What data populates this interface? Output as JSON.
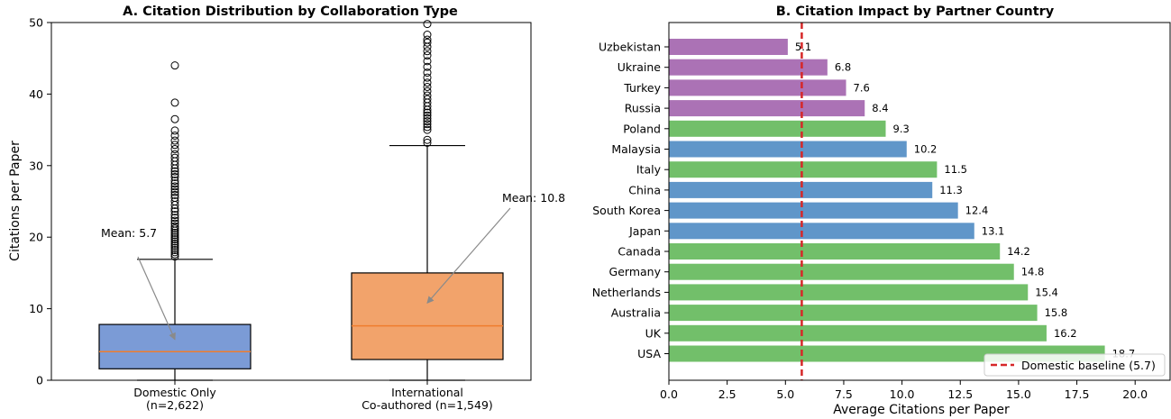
{
  "colors": {
    "domestic_box": "#7b9bd6",
    "international_box": "#f2a36b",
    "median_line": "#ef7d2d",
    "europe_green": "#72bf6a",
    "asia_blue": "#6096c9",
    "eurasia_purple": "#ab72b5",
    "baseline_red": "#d62728",
    "annotation_arrow": "#8a8a8a"
  },
  "chart_data": [
    {
      "type": "box",
      "title": "A. Citation Distribution by Collaboration Type",
      "xlabel": "",
      "ylabel": "Citations per Paper",
      "ylim": [
        0,
        50
      ],
      "yticks": [
        "0",
        "10",
        "20",
        "30",
        "40",
        "50"
      ],
      "categories": [
        {
          "line1": "Domestic Only",
          "line2": "(n=2,622)"
        },
        {
          "line1": "International",
          "line2": "Co-authored (n=1,549)"
        }
      ],
      "boxes": [
        {
          "name": "Domestic Only",
          "q1": 1.6,
          "median": 4.0,
          "q3": 7.8,
          "whisker_low": 0.0,
          "whisker_high": 16.9,
          "mean_label": "Mean: 5.7",
          "mean": 5.7,
          "outliers": [
            17.3,
            17.6,
            17.9,
            18.2,
            18.5,
            18.8,
            19.1,
            19.4,
            19.7,
            20.0,
            20.3,
            20.6,
            20.9,
            21.2,
            21.5,
            21.9,
            22.3,
            22.7,
            23.1,
            23.6,
            24.0,
            24.5,
            25.0,
            25.5,
            25.9,
            26.3,
            26.7,
            27.1,
            27.5,
            27.9,
            28.4,
            28.8,
            29.2,
            29.6,
            30.1,
            30.6,
            31.1,
            31.6,
            32.3,
            32.9,
            33.5,
            34.2,
            34.9,
            36.5,
            38.8,
            44.0
          ]
        },
        {
          "name": "International Co-authored",
          "q1": 2.9,
          "median": 7.6,
          "q3": 15.0,
          "whisker_low": 0.0,
          "whisker_high": 32.8,
          "mean_label": "Mean: 10.8",
          "mean": 10.8,
          "outliers": [
            33.2,
            33.6,
            35.0,
            35.4,
            35.8,
            36.2,
            36.6,
            37.0,
            37.4,
            37.8,
            38.3,
            38.8,
            39.3,
            39.8,
            40.4,
            41.0,
            41.6,
            42.3,
            43.0,
            43.8,
            44.6,
            45.4,
            46.0,
            46.6,
            47.2,
            47.6,
            48.3,
            49.8
          ]
        }
      ]
    },
    {
      "type": "bar",
      "orientation": "horizontal",
      "title": "B. Citation Impact by Partner Country",
      "xlabel": "Average Citations per Paper",
      "ylabel": "",
      "xlim": [
        0,
        21.5
      ],
      "xticks": [
        "0.0",
        "2.5",
        "5.0",
        "7.5",
        "10.0",
        "12.5",
        "15.0",
        "17.5",
        "20.0"
      ],
      "categories": [
        "Uzbekistan",
        "Ukraine",
        "Turkey",
        "Russia",
        "Poland",
        "Malaysia",
        "Italy",
        "China",
        "South Korea",
        "Japan",
        "Canada",
        "Germany",
        "Netherlands",
        "Australia",
        "UK",
        "USA"
      ],
      "values": [
        5.1,
        6.8,
        7.6,
        8.4,
        9.3,
        10.2,
        11.5,
        11.3,
        12.4,
        13.1,
        14.2,
        14.8,
        15.4,
        15.8,
        16.2,
        18.7
      ],
      "value_labels": [
        "5.1",
        "6.8",
        "7.6",
        "8.4",
        "9.3",
        "10.2",
        "11.5",
        "11.3",
        "12.4",
        "13.1",
        "14.2",
        "14.8",
        "15.4",
        "15.8",
        "16.2",
        "18.7"
      ],
      "groups": [
        "eurasia",
        "eurasia",
        "eurasia",
        "eurasia",
        "europe",
        "asia",
        "europe",
        "asia",
        "asia",
        "asia",
        "europe",
        "europe",
        "europe",
        "europe",
        "europe",
        "europe"
      ],
      "baseline": {
        "value": 5.7,
        "label": "Domestic baseline (5.7)"
      },
      "legend_position": "bottom-right"
    }
  ]
}
